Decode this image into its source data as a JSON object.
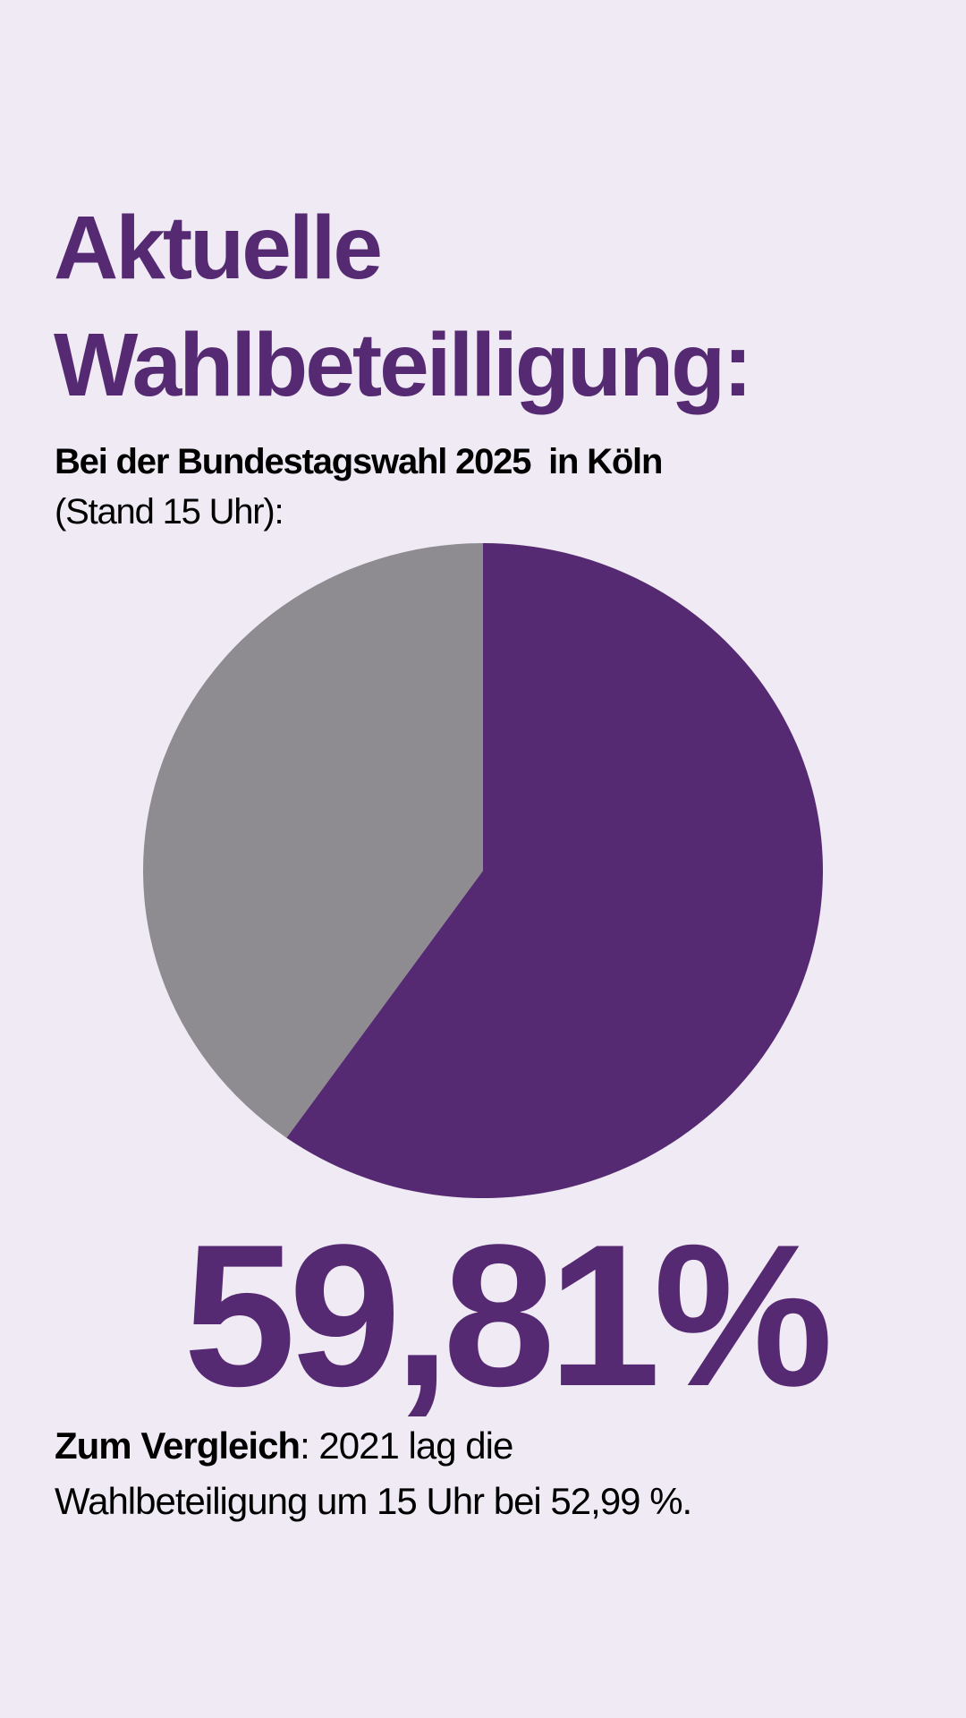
{
  "title_line1": "Aktuelle",
  "title_line2": "Wahlbeteilligung:",
  "subtitle_bold": "Bei der Bundestagswahl 2025  in Köln",
  "subtitle_note": "(Stand 15 Uhr):",
  "big_value": "59,81%",
  "comparison_bold": "Zum Vergleich",
  "comparison_rest1": ": 2021 lag die",
  "comparison_rest2": "Wahlbeteiligung um 15 Uhr bei 52,99 %.",
  "colors": {
    "background": "#efeaf3",
    "accent": "#552a72",
    "gray": "#8e8b91"
  },
  "chart_data": {
    "type": "pie",
    "slices": [
      {
        "value": 59.81,
        "color": "#552a72"
      },
      {
        "value": 40.19,
        "color": "#8e8b91"
      }
    ],
    "start_angle": "top",
    "direction": "clockwise"
  }
}
